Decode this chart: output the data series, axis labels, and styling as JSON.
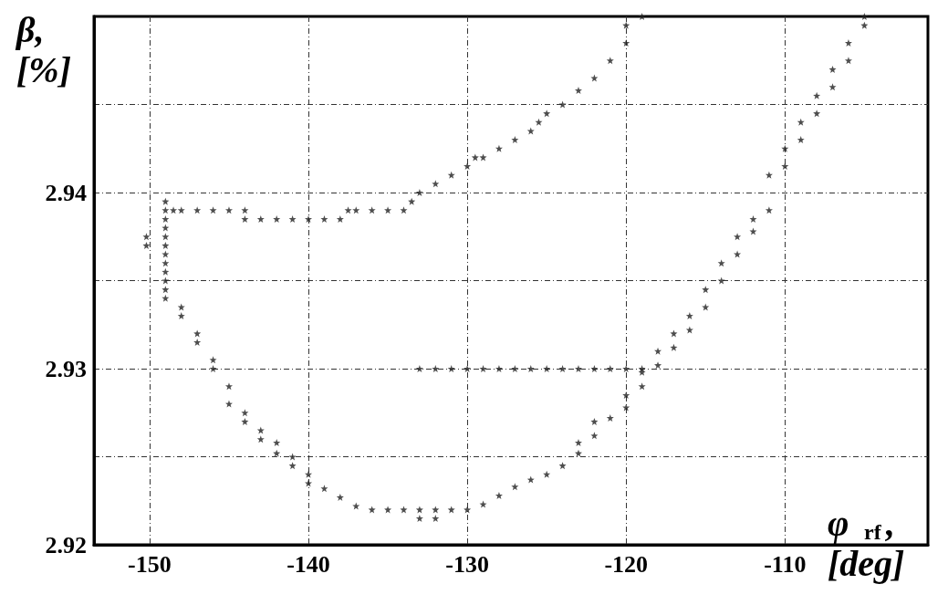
{
  "chart_data": {
    "type": "scatter",
    "xlabel": "φ$_{rf}$, [deg]",
    "ylabel": "β, [%]",
    "xlim": [
      -153.5,
      -101
    ],
    "ylim": [
      2.92,
      2.95
    ],
    "xticks": [
      -150,
      -140,
      -130,
      -120,
      -110
    ],
    "yticks": [
      2.92,
      {
        "value": 2.925,
        "label": null
      },
      2.93,
      {
        "value": 2.935,
        "label": null
      },
      2.94,
      {
        "value": 2.945,
        "label": null
      }
    ],
    "grid": true,
    "marker": "star",
    "series": [
      {
        "color": "#222222",
        "x": [
          -150.2,
          -150.2,
          -149,
          -149,
          -149,
          -149,
          -149,
          -149,
          -149,
          -149,
          -149,
          -149,
          -149,
          -149,
          -148.5,
          -148,
          -147,
          -146,
          -145,
          -144,
          -144,
          -143,
          -142,
          -141,
          -140,
          -139,
          -138,
          -137.5,
          -137,
          -136,
          -135,
          -134,
          -133.5,
          -133,
          -132,
          -131,
          -130,
          -129.5,
          -129,
          -128,
          -127,
          -126,
          -125.5,
          -125,
          -124,
          -123,
          -122,
          -121,
          -120,
          -120,
          -119
        ],
        "values": [
          2.9375,
          2.937,
          2.9395,
          2.939,
          2.9385,
          2.938,
          2.9375,
          2.937,
          2.9365,
          2.936,
          2.9355,
          2.935,
          2.9345,
          2.934,
          2.939,
          2.939,
          2.939,
          2.939,
          2.939,
          2.939,
          2.9385,
          2.9385,
          2.9385,
          2.9385,
          2.9385,
          2.9385,
          2.9385,
          2.939,
          2.939,
          2.939,
          2.939,
          2.939,
          2.9395,
          2.94,
          2.9405,
          2.941,
          2.9415,
          2.942,
          2.942,
          2.9425,
          2.943,
          2.9435,
          2.944,
          2.9445,
          2.945,
          2.9458,
          2.9465,
          2.9475,
          2.9485,
          2.9495,
          2.95
        ]
      },
      {
        "color": "#222222",
        "x": [
          -148,
          -148,
          -147,
          -147,
          -146,
          -146,
          -145,
          -145,
          -144,
          -144,
          -143,
          -143,
          -142,
          -142,
          -141,
          -141,
          -140,
          -140,
          -139,
          -138,
          -137,
          -136,
          -135,
          -134,
          -133,
          -133,
          -132,
          -132,
          -131,
          -130,
          -129,
          -128,
          -127,
          -126,
          -125,
          -124,
          -123,
          -123,
          -122,
          -122,
          -121,
          -120,
          -120,
          -119,
          -119,
          -118,
          -118,
          -117,
          -117,
          -116,
          -116,
          -115,
          -115,
          -114,
          -114,
          -113,
          -113,
          -112,
          -112,
          -111,
          -111,
          -110,
          -110,
          -109,
          -109,
          -108,
          -108,
          -107,
          -107,
          -106,
          -106,
          -105,
          -105
        ],
        "values": [
          2.9335,
          2.933,
          2.932,
          2.9315,
          2.9305,
          2.93,
          2.929,
          2.928,
          2.9275,
          2.927,
          2.9265,
          2.926,
          2.9258,
          2.9252,
          2.925,
          2.9245,
          2.924,
          2.9235,
          2.9232,
          2.9227,
          2.9222,
          2.922,
          2.922,
          2.922,
          2.922,
          2.9215,
          2.922,
          2.9215,
          2.922,
          2.922,
          2.9223,
          2.9228,
          2.9233,
          2.9237,
          2.924,
          2.9245,
          2.9258,
          2.9252,
          2.927,
          2.9262,
          2.9272,
          2.9285,
          2.9278,
          2.9298,
          2.929,
          2.931,
          2.9302,
          2.932,
          2.9312,
          2.933,
          2.9322,
          2.9345,
          2.9335,
          2.936,
          2.935,
          2.9375,
          2.9365,
          2.9385,
          2.9378,
          2.941,
          2.939,
          2.9425,
          2.9415,
          2.944,
          2.943,
          2.9455,
          2.9445,
          2.947,
          2.946,
          2.9485,
          2.9475,
          2.95,
          2.9495
        ]
      },
      {
        "color": "#222222",
        "x": [
          -133,
          -132,
          -131,
          -130,
          -129,
          -128,
          -127,
          -126,
          -125,
          -124,
          -123,
          -122,
          -121,
          -120,
          -119
        ],
        "values": [
          2.93,
          2.93,
          2.93,
          2.93,
          2.93,
          2.93,
          2.93,
          2.93,
          2.93,
          2.93,
          2.93,
          2.93,
          2.93,
          2.93,
          2.93
        ]
      }
    ]
  }
}
